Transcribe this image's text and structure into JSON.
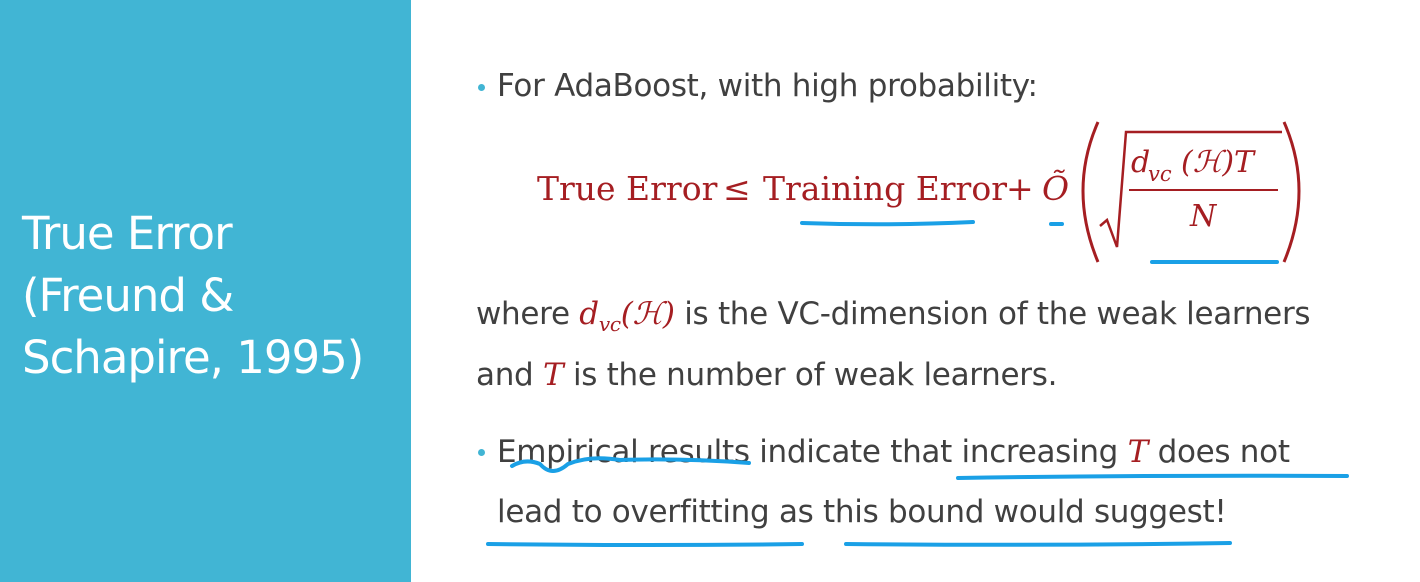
{
  "sidebar": {
    "color": "#41b5d4",
    "title_lines": [
      "True Error",
      "(Freund &",
      "Schapire, 1995)"
    ]
  },
  "bullet1": {
    "text": "For AdaBoost, with high probability:"
  },
  "equation": {
    "lhs": "True Error",
    "le": "≤",
    "term": "Training Error",
    "plus": "+",
    "bigO": "Õ",
    "numerator_d": "d",
    "numerator_sub": "vc",
    "numerator_rest": "(ℋ)T",
    "denominator": "N"
  },
  "where": {
    "w1": "where",
    "sym_d": "d",
    "sym_sub": "vc",
    "sym_H": "(ℋ)",
    "w2": "is the VC-dimension of the weak learners",
    "and": "and",
    "T": "T",
    "w3": "is the number of weak learners."
  },
  "bullet2": {
    "part1": "Empirical results indicate that increasing",
    "T": "T",
    "part2": "does not",
    "line2": "lead to overfitting as this bound would suggest!"
  },
  "colors": {
    "math": "#a51e22",
    "ink": "#1aa0e6",
    "text": "#404040"
  }
}
